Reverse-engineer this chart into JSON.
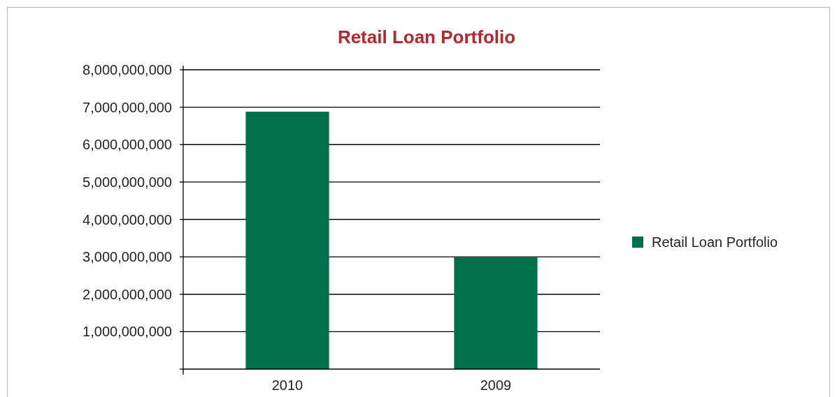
{
  "chart_data": {
    "type": "bar",
    "title": "Retail Loan Portfolio",
    "categories": [
      "2010",
      "2009"
    ],
    "series": [
      {
        "name": "Retail Loan Portfolio",
        "color": "#00704a",
        "values": [
          6880000000,
          2990000000
        ]
      }
    ],
    "ylim": [
      0,
      8000000000
    ],
    "yticks": [
      {
        "value": 0,
        "label": null
      },
      {
        "value": 1000000000,
        "label": "1,000,000,000"
      },
      {
        "value": 2000000000,
        "label": "2,000,000,000"
      },
      {
        "value": 3000000000,
        "label": "3,000,000,000"
      },
      {
        "value": 4000000000,
        "label": "4,000,000,000"
      },
      {
        "value": 5000000000,
        "label": "5,000,000,000"
      },
      {
        "value": 6000000000,
        "label": "6,000,000,000"
      },
      {
        "value": 7000000000,
        "label": "7,000,000,000"
      },
      {
        "value": 8000000000,
        "label": "8,000,000,000"
      }
    ],
    "grid": "y",
    "legend": "right"
  }
}
